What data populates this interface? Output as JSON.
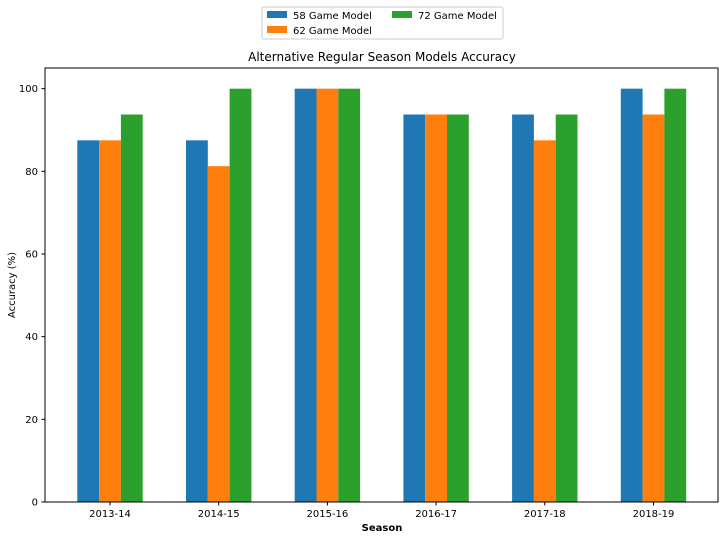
{
  "chart_data": {
    "type": "bar",
    "title": "Alternative Regular Season Models Accuracy",
    "xlabel": "Season",
    "ylabel": "Accuracy (%)",
    "categories": [
      "2013-14",
      "2014-15",
      "2015-16",
      "2016-17",
      "2017-18",
      "2018-19"
    ],
    "series": [
      {
        "name": "58 Game Model",
        "color": "#1f77b4",
        "values": [
          87.5,
          87.5,
          100,
          93.75,
          93.75,
          100
        ]
      },
      {
        "name": "62 Game Model",
        "color": "#ff7f0e",
        "values": [
          87.5,
          81.25,
          100,
          93.75,
          87.5,
          93.75
        ]
      },
      {
        "name": "72 Game Model",
        "color": "#2ca02c",
        "values": [
          93.75,
          100,
          100,
          93.75,
          93.75,
          100
        ]
      }
    ],
    "ylim": [
      0,
      105
    ],
    "yticks": [
      0,
      20,
      40,
      60,
      80,
      100
    ],
    "grid": false,
    "legend_position": "top-center"
  }
}
